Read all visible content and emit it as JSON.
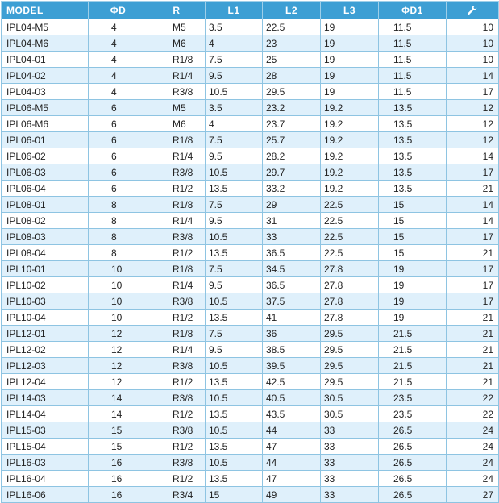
{
  "table": {
    "headers": [
      "MODEL",
      "ΦD",
      "R",
      "L1",
      "L2",
      "L3",
      "ΦD1"
    ],
    "wrench_icon": "wrench-icon",
    "colors": {
      "header_bg": "#3d9fd4",
      "alt_row_bg": "#dff0fb",
      "border": "#8ec4e2"
    },
    "rows": [
      [
        "IPL04-M5",
        "4",
        "M5",
        "3.5",
        "22.5",
        "19",
        "11.5",
        "10"
      ],
      [
        "IPL04-M6",
        "4",
        "M6",
        "4",
        "23",
        "19",
        "11.5",
        "10"
      ],
      [
        "IPL04-01",
        "4",
        "R1/8",
        "7.5",
        "25",
        "19",
        "11.5",
        "10"
      ],
      [
        "IPL04-02",
        "4",
        "R1/4",
        "9.5",
        "28",
        "19",
        "11.5",
        "14"
      ],
      [
        "IPL04-03",
        "4",
        "R3/8",
        "10.5",
        "29.5",
        "19",
        "11.5",
        "17"
      ],
      [
        "IPL06-M5",
        "6",
        "M5",
        "3.5",
        "23.2",
        "19.2",
        "13.5",
        "12"
      ],
      [
        "IPL06-M6",
        "6",
        "M6",
        "4",
        "23.7",
        "19.2",
        "13.5",
        "12"
      ],
      [
        "IPL06-01",
        "6",
        "R1/8",
        "7.5",
        "25.7",
        "19.2",
        "13.5",
        "12"
      ],
      [
        "IPL06-02",
        "6",
        "R1/4",
        "9.5",
        "28.2",
        "19.2",
        "13.5",
        "14"
      ],
      [
        "IPL06-03",
        "6",
        "R3/8",
        "10.5",
        "29.7",
        "19.2",
        "13.5",
        "17"
      ],
      [
        "IPL06-04",
        "6",
        "R1/2",
        "13.5",
        "33.2",
        "19.2",
        "13.5",
        "21"
      ],
      [
        "IPL08-01",
        "8",
        "R1/8",
        "7.5",
        "29",
        "22.5",
        "15",
        "14"
      ],
      [
        "IPL08-02",
        "8",
        "R1/4",
        "9.5",
        "31",
        "22.5",
        "15",
        "14"
      ],
      [
        "IPL08-03",
        "8",
        "R3/8",
        "10.5",
        "33",
        "22.5",
        "15",
        "17"
      ],
      [
        "IPL08-04",
        "8",
        "R1/2",
        "13.5",
        "36.5",
        "22.5",
        "15",
        "21"
      ],
      [
        "IPL10-01",
        "10",
        "R1/8",
        "7.5",
        "34.5",
        "27.8",
        "19",
        "17"
      ],
      [
        "IPL10-02",
        "10",
        "R1/4",
        "9.5",
        "36.5",
        "27.8",
        "19",
        "17"
      ],
      [
        "IPL10-03",
        "10",
        "R3/8",
        "10.5",
        "37.5",
        "27.8",
        "19",
        "17"
      ],
      [
        "IPL10-04",
        "10",
        "R1/2",
        "13.5",
        "41",
        "27.8",
        "19",
        "21"
      ],
      [
        "IPL12-01",
        "12",
        "R1/8",
        "7.5",
        "36",
        "29.5",
        "21.5",
        "21"
      ],
      [
        "IPL12-02",
        "12",
        "R1/4",
        "9.5",
        "38.5",
        "29.5",
        "21.5",
        "21"
      ],
      [
        "IPL12-03",
        "12",
        "R3/8",
        "10.5",
        "39.5",
        "29.5",
        "21.5",
        "21"
      ],
      [
        "IPL12-04",
        "12",
        "R1/2",
        "13.5",
        "42.5",
        "29.5",
        "21.5",
        "21"
      ],
      [
        "IPL14-03",
        "14",
        "R3/8",
        "10.5",
        "40.5",
        "30.5",
        "23.5",
        "22"
      ],
      [
        "IPL14-04",
        "14",
        "R1/2",
        "13.5",
        "43.5",
        "30.5",
        "23.5",
        "22"
      ],
      [
        "IPL15-03",
        "15",
        "R3/8",
        "10.5",
        "44",
        "33",
        "26.5",
        "24"
      ],
      [
        "IPL15-04",
        "15",
        "R1/2",
        "13.5",
        "47",
        "33",
        "26.5",
        "24"
      ],
      [
        "IPL16-03",
        "16",
        "R3/8",
        "10.5",
        "44",
        "33",
        "26.5",
        "24"
      ],
      [
        "IPL16-04",
        "16",
        "R1/2",
        "13.5",
        "47",
        "33",
        "26.5",
        "24"
      ],
      [
        "IPL16-06",
        "16",
        "R3/4",
        "15",
        "49",
        "33",
        "26.5",
        "27"
      ]
    ]
  }
}
